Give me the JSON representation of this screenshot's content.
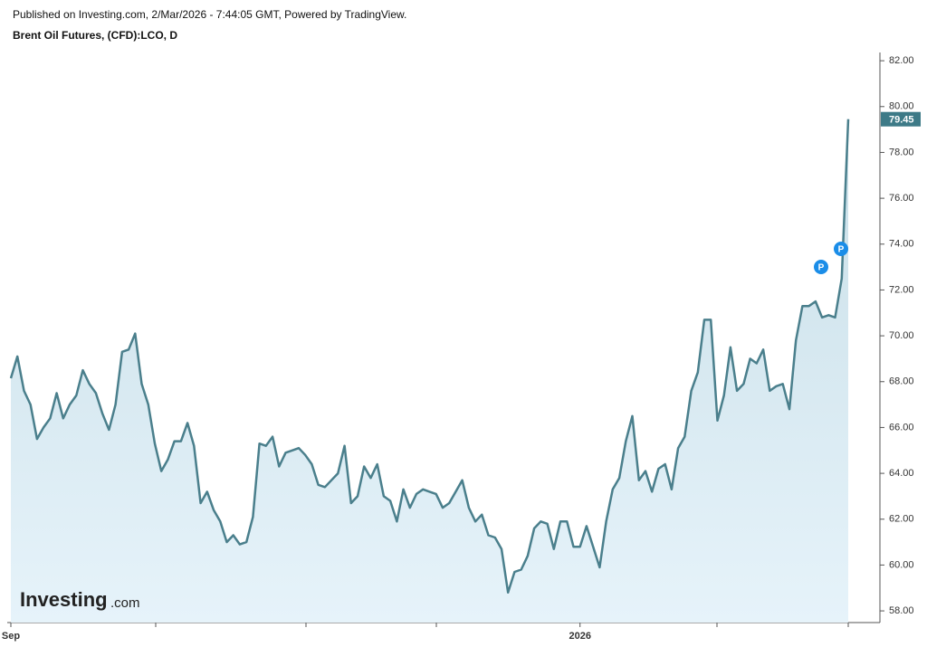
{
  "header": {
    "published": "Published on Investing.com, 2/Mar/2026 - 7:44:05 GMT, Powered by TradingView.",
    "symbol": "Brent Oil Futures, (CFD):LCO, D"
  },
  "logo": {
    "brand": "Investing",
    "suffix": ".com"
  },
  "chart_data": {
    "type": "area",
    "color": "#4a7f8c",
    "values": [
      68.15,
      69.1,
      67.6,
      67.0,
      65.5,
      66.0,
      66.4,
      67.5,
      66.4,
      67.0,
      67.4,
      68.5,
      67.9,
      67.5,
      66.6,
      65.9,
      67.0,
      69.3,
      69.4,
      70.1,
      67.9,
      67.0,
      65.3,
      64.1,
      64.6,
      65.4,
      65.4,
      66.2,
      65.2,
      62.7,
      63.2,
      62.4,
      61.9,
      61.0,
      61.3,
      60.9,
      61.0,
      62.1,
      65.3,
      65.2,
      65.6,
      64.3,
      64.9,
      65.0,
      65.1,
      64.8,
      64.4,
      63.5,
      63.4,
      63.7,
      64.0,
      65.2,
      62.7,
      63.0,
      64.3,
      63.8,
      64.4,
      63.0,
      62.8,
      61.9,
      63.3,
      62.5,
      63.1,
      63.3,
      63.2,
      63.1,
      62.5,
      62.7,
      63.2,
      63.7,
      62.5,
      61.9,
      62.2,
      61.3,
      61.2,
      60.7,
      58.8,
      59.7,
      59.8,
      60.4,
      61.6,
      61.9,
      61.8,
      60.7,
      61.9,
      61.9,
      60.8,
      60.8,
      61.7,
      60.8,
      59.9,
      61.9,
      63.3,
      63.8,
      65.4,
      66.5,
      63.7,
      64.1,
      63.2,
      64.2,
      64.4,
      63.3,
      65.1,
      65.6,
      67.6,
      68.4,
      70.7,
      70.7,
      66.3,
      67.4,
      69.5,
      67.6,
      67.9,
      69.0,
      68.8,
      69.4,
      67.6,
      67.8,
      67.9,
      66.8,
      69.8,
      71.3,
      71.3,
      71.5,
      70.8,
      70.9,
      70.8,
      72.5,
      79.45
    ],
    "ylim": [
      57.49,
      82.36
    ],
    "yticks": [
      {
        "value": 58,
        "label": "58.00"
      },
      {
        "value": 60,
        "label": "60.00"
      },
      {
        "value": 62,
        "label": "62.00"
      },
      {
        "value": 64,
        "label": "64.00"
      },
      {
        "value": 66,
        "label": "66.00"
      },
      {
        "value": 68,
        "label": "68.00"
      },
      {
        "value": 70,
        "label": "70.00"
      },
      {
        "value": 72,
        "label": "72.00"
      },
      {
        "value": 74,
        "label": "74.00"
      },
      {
        "value": 76,
        "label": "76.00"
      },
      {
        "value": 78,
        "label": "78.00"
      },
      {
        "value": 80,
        "label": "80.00"
      },
      {
        "value": 82,
        "label": "82.00"
      }
    ],
    "xticks": [
      {
        "value": 0,
        "label": "Sep"
      },
      {
        "value": 87,
        "label": "2026"
      }
    ]
  }
}
